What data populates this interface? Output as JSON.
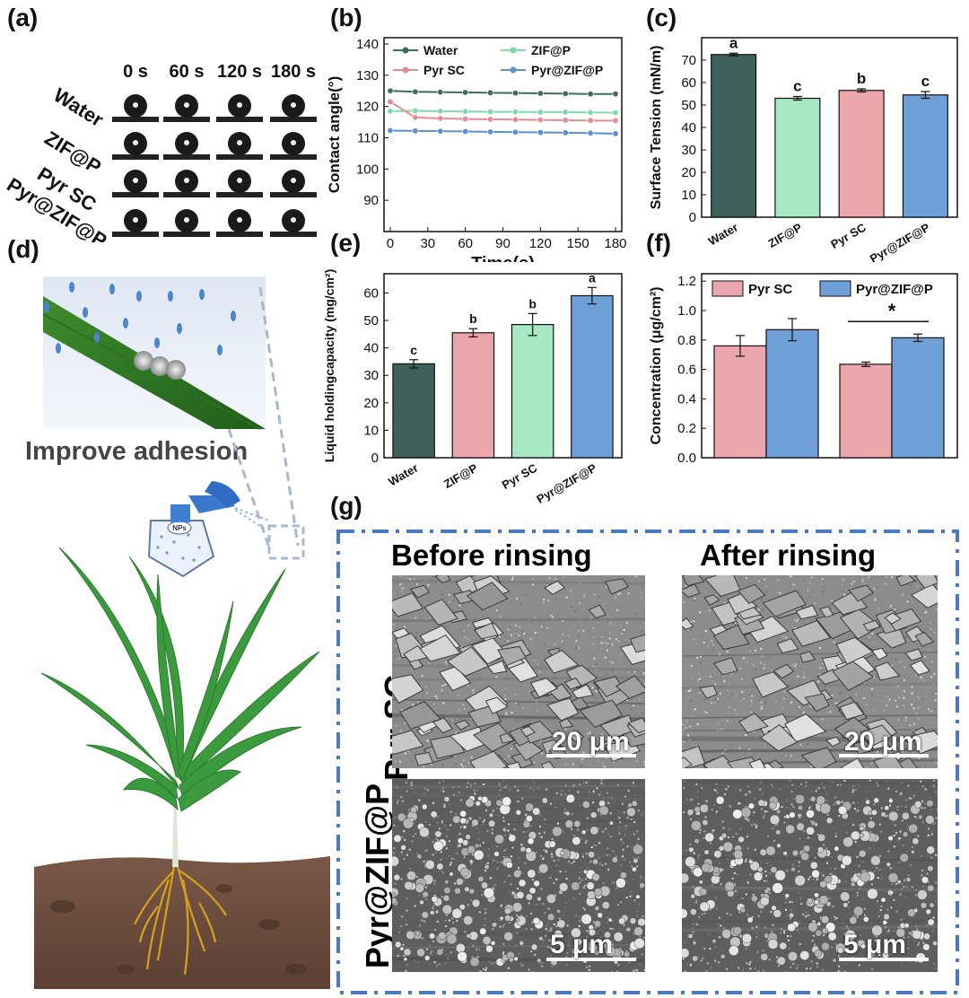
{
  "panels": {
    "a": "(a)",
    "b": "(b)",
    "c": "(c)",
    "d": "(d)",
    "e": "(e)",
    "f": "(f)",
    "g": "(g)"
  },
  "panel_a": {
    "rows": [
      "Water",
      "ZIF@P",
      "Pyr SC",
      "Pyr@ZIF@P"
    ],
    "times": [
      "0 s",
      "60 s",
      "120 s",
      "180 s"
    ]
  },
  "panel_d": {
    "caption": "Improve adhesion",
    "bottle_label": "NPs"
  },
  "panel_g": {
    "col_before": "Before rinsing",
    "col_after": "After rinsing",
    "row_pyr_sc": "Pyr SC",
    "row_pyr_zif": "Pyr@ZIF@P",
    "scale_top": "20 μm",
    "scale_bottom": "5 μm"
  },
  "chart_data": [
    {
      "id": "b",
      "type": "line",
      "xlabel": "Time(s)",
      "ylabel": "Contact angle(°)",
      "x": [
        0,
        20,
        40,
        60,
        80,
        100,
        120,
        140,
        160,
        180
      ],
      "xticks": [
        "0",
        "30",
        "60",
        "90",
        "120",
        "150",
        "180"
      ],
      "xtick_values": [
        0,
        30,
        60,
        90,
        120,
        150,
        180
      ],
      "yticks": [
        "90",
        "100",
        "110",
        "120",
        "130",
        "140"
      ],
      "xlim": [
        -5,
        185
      ],
      "ylim": [
        80,
        142
      ],
      "series": [
        {
          "name": "Water",
          "color": "#3e6b5f",
          "values": [
            125,
            124.7,
            124.6,
            124.5,
            124.4,
            124.3,
            124.2,
            124.1,
            124,
            124
          ]
        },
        {
          "name": "ZIF@P",
          "color": "#7ed9a8",
          "values": [
            118.5,
            118.6,
            118.5,
            118.4,
            118.3,
            118.3,
            118.2,
            118.2,
            118.1,
            118
          ]
        },
        {
          "name": "Pyr SC",
          "color": "#e38b94",
          "values": [
            121.5,
            116.5,
            116.2,
            116,
            115.9,
            115.8,
            115.7,
            115.6,
            115.5,
            115.5
          ]
        },
        {
          "name": "Pyr@ZIF@P",
          "color": "#5b8fd0",
          "values": [
            112.3,
            112.2,
            112.1,
            112,
            111.9,
            111.8,
            111.7,
            111.6,
            111.5,
            111.3
          ]
        }
      ]
    },
    {
      "id": "c",
      "type": "bar",
      "ylabel": "Surface Tension (mN/m)",
      "categories": [
        "Water",
        "ZIF@P",
        "Pyr SC",
        "Pyr@ZIF@P"
      ],
      "values": [
        72.5,
        53,
        56.5,
        54.5
      ],
      "errors": [
        0.6,
        0.8,
        0.7,
        1.5
      ],
      "letters": [
        "a",
        "c",
        "b",
        "c"
      ],
      "colors": [
        "#3e5f5a",
        "#a6e9c4",
        "#eba6ad",
        "#6e9fd6"
      ],
      "yticks": [
        "0",
        "10",
        "20",
        "30",
        "40",
        "50",
        "60",
        "70"
      ],
      "ylim": [
        0,
        80
      ]
    },
    {
      "id": "e",
      "type": "bar",
      "ylabel": "Liquid holdingcapacity (mg/cm²)",
      "categories": [
        "Water",
        "ZIF@P",
        "Pyr SC",
        "Pyr@ZIF@P"
      ],
      "values": [
        34.2,
        45.5,
        48.5,
        59
      ],
      "errors": [
        1.5,
        1.5,
        4,
        3
      ],
      "letters": [
        "c",
        "b",
        "b",
        "a"
      ],
      "colors": [
        "#3e5f5a",
        "#eba6ad",
        "#a6e9c4",
        "#6e9fd6"
      ],
      "yticks": [
        "0",
        "10",
        "20",
        "30",
        "40",
        "50",
        "60"
      ],
      "ylim": [
        0,
        67
      ]
    },
    {
      "id": "f",
      "type": "bar",
      "ylabel": "Concentration (μg/cm²)",
      "groups": 2,
      "series": [
        {
          "name": "Pyr SC",
          "color": "#eba6ad",
          "values": [
            0.76,
            0.635
          ],
          "errors": [
            0.07,
            0.015
          ]
        },
        {
          "name": "Pyr@ZIF@P",
          "color": "#6e9fd6",
          "values": [
            0.87,
            0.815
          ],
          "errors": [
            0.075,
            0.025
          ]
        }
      ],
      "significance": "*",
      "yticks": [
        "0.0",
        "0.2",
        "0.4",
        "0.6",
        "0.8",
        "1.0",
        "1.2"
      ],
      "ylim": [
        0,
        1.25
      ]
    }
  ]
}
